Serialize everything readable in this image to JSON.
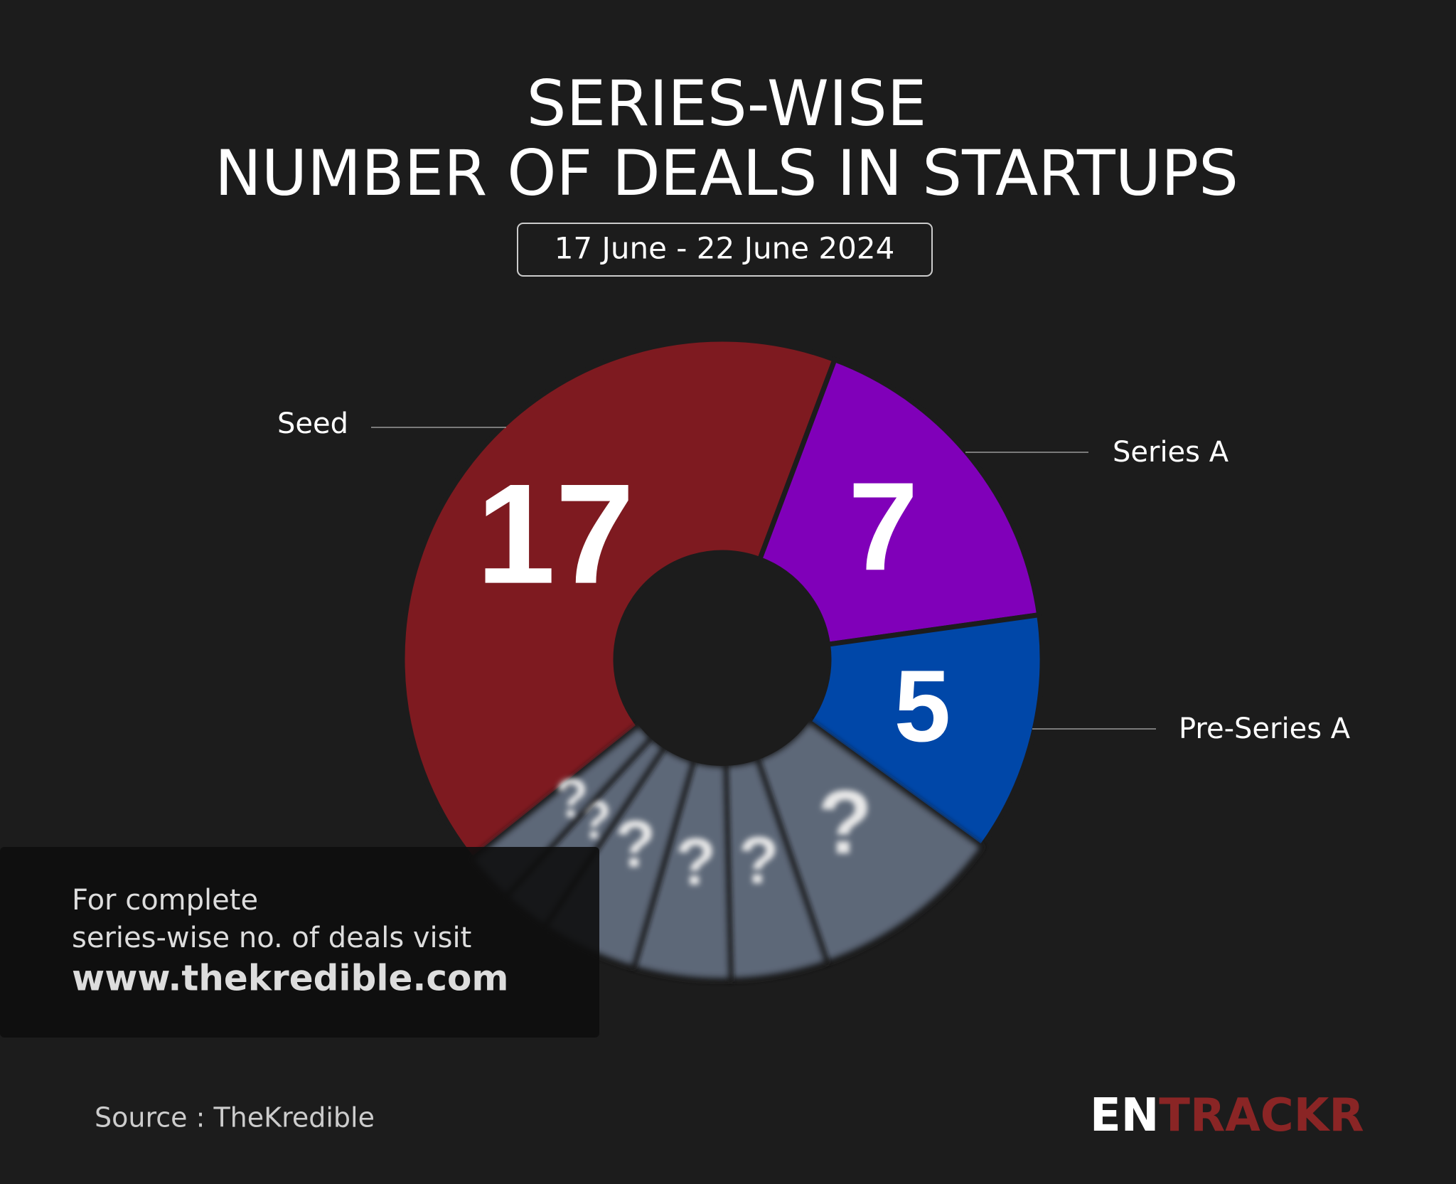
{
  "chart_data": {
    "type": "donut",
    "title": [
      "SERIES-WISE",
      "NUMBER OF DEALS IN STARTUPS"
    ],
    "subtitle": "17 June - 22 June 2024",
    "categories": [
      "Seed",
      "Series A",
      "Pre-Series A",
      null,
      null,
      null,
      null,
      null,
      null
    ],
    "values": [
      17,
      7,
      5,
      4,
      2,
      2,
      2,
      1,
      1
    ],
    "value_labels": [
      "17",
      "7",
      "5",
      "?",
      "?",
      "?",
      "?",
      "?",
      "?"
    ],
    "colors": [
      "#7e1a20",
      "#8000b9",
      "#0047a8",
      "#5d6878",
      "#5d6878",
      "#5d6878",
      "#5d6878",
      "#5d6878",
      "#5d6878"
    ],
    "note": [
      "For complete",
      "series-wise no. of deals visit",
      "www.thekredible.com"
    ],
    "source": "Source : TheKredible",
    "logo": [
      "EN",
      "TRACKR"
    ]
  }
}
